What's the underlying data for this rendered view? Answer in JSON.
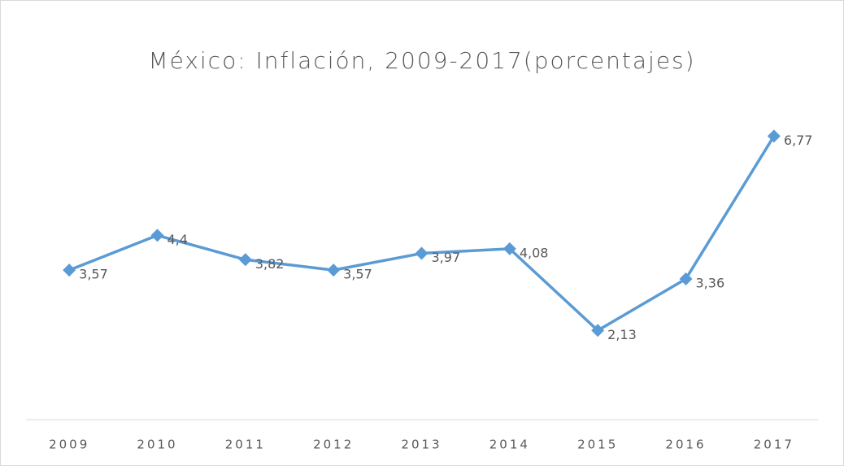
{
  "chart_data": {
    "type": "line",
    "title": "México: Inflación, 2009-2017(porcentajes)",
    "categories": [
      "2009",
      "2010",
      "2011",
      "2012",
      "2013",
      "2014",
      "2015",
      "2016",
      "2017"
    ],
    "series": [
      {
        "name": "Inflación",
        "color": "#5b9bd5",
        "values": [
          3.57,
          4.4,
          3.82,
          3.57,
          3.97,
          4.08,
          2.13,
          3.36,
          6.77
        ],
        "value_labels": [
          "3,57",
          "4,4",
          "3,82",
          "3,57",
          "3,97",
          "4,08",
          "2,13",
          "3,36",
          "6,77"
        ]
      }
    ],
    "ylim": [
      0,
      8
    ],
    "grid": false,
    "legend": false
  }
}
